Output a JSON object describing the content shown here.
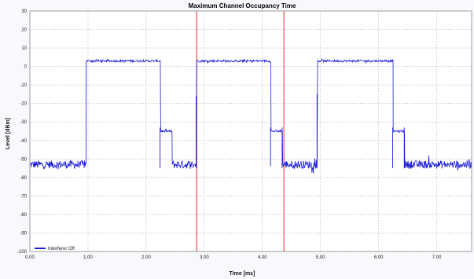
{
  "chart_data": {
    "type": "line",
    "title": "Maximum Channel Occupancy Time",
    "xlabel": "Time [ms]",
    "ylabel": "Level [dBm]",
    "xlim": [
      0,
      7.6
    ],
    "ylim": [
      -100,
      30
    ],
    "x_ticks": [
      "0.00",
      "1.00",
      "2.00",
      "3.00",
      "4.00",
      "5.00",
      "6.00",
      "7.00"
    ],
    "y_ticks": [
      "30",
      "20",
      "10",
      "0",
      "-10",
      "-20",
      "-30",
      "-40",
      "-50",
      "-60",
      "-70",
      "-80",
      "-90",
      "-100"
    ],
    "grid": true,
    "legend_position": "bottom-left",
    "series": [
      {
        "name": "Interferer Off",
        "color": "#1f1fd6",
        "segments": [
          {
            "x0": 0.0,
            "x1": 0.97,
            "level": -53,
            "noise": 2.2
          },
          {
            "x0": 0.97,
            "x1": 2.25,
            "level": 3,
            "noise": 0.6
          },
          {
            "x0": 2.25,
            "x1": 2.45,
            "level": -35,
            "noise": 0.6
          },
          {
            "x0": 2.45,
            "x1": 2.87,
            "level": -53,
            "noise": 2.2
          },
          {
            "x0": 2.87,
            "x1": 4.15,
            "level": 3,
            "noise": 0.6
          },
          {
            "x0": 4.15,
            "x1": 4.35,
            "level": -35,
            "noise": 0.6
          },
          {
            "x0": 4.35,
            "x1": 4.95,
            "level": -53,
            "noise": 2.2
          },
          {
            "x0": 4.95,
            "x1": 6.25,
            "level": 3,
            "noise": 0.6
          },
          {
            "x0": 6.25,
            "x1": 6.45,
            "level": -35,
            "noise": 0.6
          },
          {
            "x0": 6.45,
            "x1": 7.6,
            "level": -53,
            "noise": 2.2
          }
        ],
        "spikes": [
          {
            "x": 2.24,
            "low": -55,
            "high": -33
          },
          {
            "x": 2.86,
            "low": -55,
            "high": -16
          },
          {
            "x": 4.14,
            "low": -54,
            "high": -33
          },
          {
            "x": 4.34,
            "low": -55,
            "high": -33
          },
          {
            "x": 4.94,
            "low": -55,
            "high": -15
          },
          {
            "x": 6.24,
            "low": -55,
            "high": -33
          },
          {
            "x": 6.44,
            "low": -55,
            "high": -33
          }
        ]
      }
    ],
    "markers": [
      {
        "x": 2.87,
        "color": "#e03030"
      },
      {
        "x": 4.37,
        "color": "#e03030"
      }
    ]
  }
}
